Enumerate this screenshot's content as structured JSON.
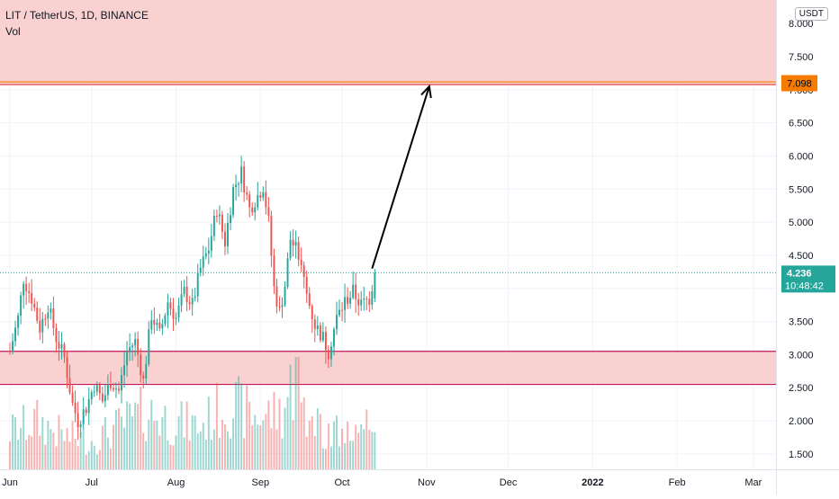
{
  "header": {
    "symbol_line": "LIT / TetherUS, 1D, BINANCE",
    "indicator": "Vol"
  },
  "price_scale_unit": "USDT",
  "colors": {
    "up": "#26a69a",
    "down": "#ef5350",
    "zone_fill": "#f8c6c6",
    "zone_line": "#c2185b",
    "target_line": "#f57c00",
    "target_badge": "#f57c00",
    "last_price_badge": "#26a69a",
    "grid": "#f0f3fa",
    "axis_text": "#131722"
  },
  "chart_data": {
    "type": "candlestick",
    "y_axis": {
      "ylim": [
        1.2,
        8.3
      ],
      "ticks": [
        "8.000",
        "7.500",
        "7.000",
        "6.500",
        "6.000",
        "5.500",
        "5.000",
        "4.500",
        "4.000",
        "3.500",
        "3.000",
        "2.500",
        "2.000",
        "1.500"
      ],
      "tick_values": [
        8.0,
        7.5,
        7.0,
        6.5,
        6.0,
        5.5,
        5.0,
        4.5,
        4.0,
        3.5,
        3.0,
        2.5,
        2.0,
        1.5
      ]
    },
    "x_axis": {
      "ticks": [
        "Jun",
        "Jul",
        "Aug",
        "Sep",
        "Oct",
        "Nov",
        "Dec",
        "2022",
        "Feb",
        "Mar"
      ],
      "tick_bold": [
        false,
        false,
        false,
        false,
        false,
        false,
        false,
        true,
        false,
        false
      ],
      "tick_day_index": [
        0,
        30,
        61,
        92,
        122,
        153,
        183,
        214,
        245,
        273
      ]
    },
    "last_price": "4.236",
    "last_price_value": 4.236,
    "countdown": "10:48:42",
    "target_price": "7.098",
    "target_value": 7.098,
    "resistance_zone": {
      "low": 7.07,
      "high": 8.3
    },
    "support_zone": {
      "low": 2.55,
      "high": 3.05
    },
    "projection_arrow": {
      "from": {
        "day": 133,
        "price": 4.3
      },
      "to": {
        "day": 154,
        "price": 7.05
      }
    },
    "close_path": [
      [
        0,
        3.05
      ],
      [
        3,
        3.55
      ],
      [
        5,
        4.15
      ],
      [
        8,
        3.85
      ],
      [
        11,
        3.4
      ],
      [
        14,
        3.75
      ],
      [
        17,
        3.25
      ],
      [
        20,
        2.95
      ],
      [
        23,
        2.25
      ],
      [
        25,
        2.0
      ],
      [
        28,
        2.2
      ],
      [
        31,
        2.55
      ],
      [
        34,
        2.3
      ],
      [
        37,
        2.6
      ],
      [
        40,
        2.45
      ],
      [
        43,
        3.05
      ],
      [
        46,
        3.2
      ],
      [
        49,
        2.6
      ],
      [
        52,
        3.6
      ],
      [
        55,
        3.3
      ],
      [
        58,
        3.8
      ],
      [
        61,
        3.55
      ],
      [
        64,
        3.95
      ],
      [
        67,
        3.75
      ],
      [
        70,
        4.3
      ],
      [
        73,
        4.6
      ],
      [
        76,
        5.2
      ],
      [
        79,
        4.7
      ],
      [
        82,
        5.5
      ],
      [
        85,
        5.75
      ],
      [
        88,
        5.2
      ],
      [
        91,
        5.4
      ],
      [
        93,
        5.55
      ],
      [
        95,
        5.0
      ],
      [
        97,
        4.0
      ],
      [
        99,
        3.65
      ],
      [
        101,
        4.05
      ],
      [
        103,
        4.75
      ],
      [
        106,
        4.5
      ],
      [
        109,
        3.9
      ],
      [
        112,
        3.45
      ],
      [
        115,
        3.25
      ],
      [
        117,
        3.05
      ],
      [
        120,
        3.55
      ],
      [
        123,
        3.8
      ],
      [
        126,
        3.95
      ],
      [
        129,
        3.75
      ],
      [
        132,
        3.85
      ],
      [
        134,
        4.24
      ]
    ],
    "volume_path": [
      [
        0,
        0.4
      ],
      [
        10,
        0.5
      ],
      [
        20,
        0.35
      ],
      [
        30,
        0.3
      ],
      [
        40,
        0.45
      ],
      [
        50,
        0.6
      ],
      [
        60,
        0.5
      ],
      [
        70,
        0.45
      ],
      [
        80,
        0.7
      ],
      [
        90,
        0.55
      ],
      [
        100,
        0.6
      ],
      [
        105,
        1.0
      ],
      [
        110,
        0.5
      ],
      [
        120,
        0.4
      ],
      [
        130,
        0.35
      ],
      [
        134,
        0.6
      ]
    ]
  }
}
